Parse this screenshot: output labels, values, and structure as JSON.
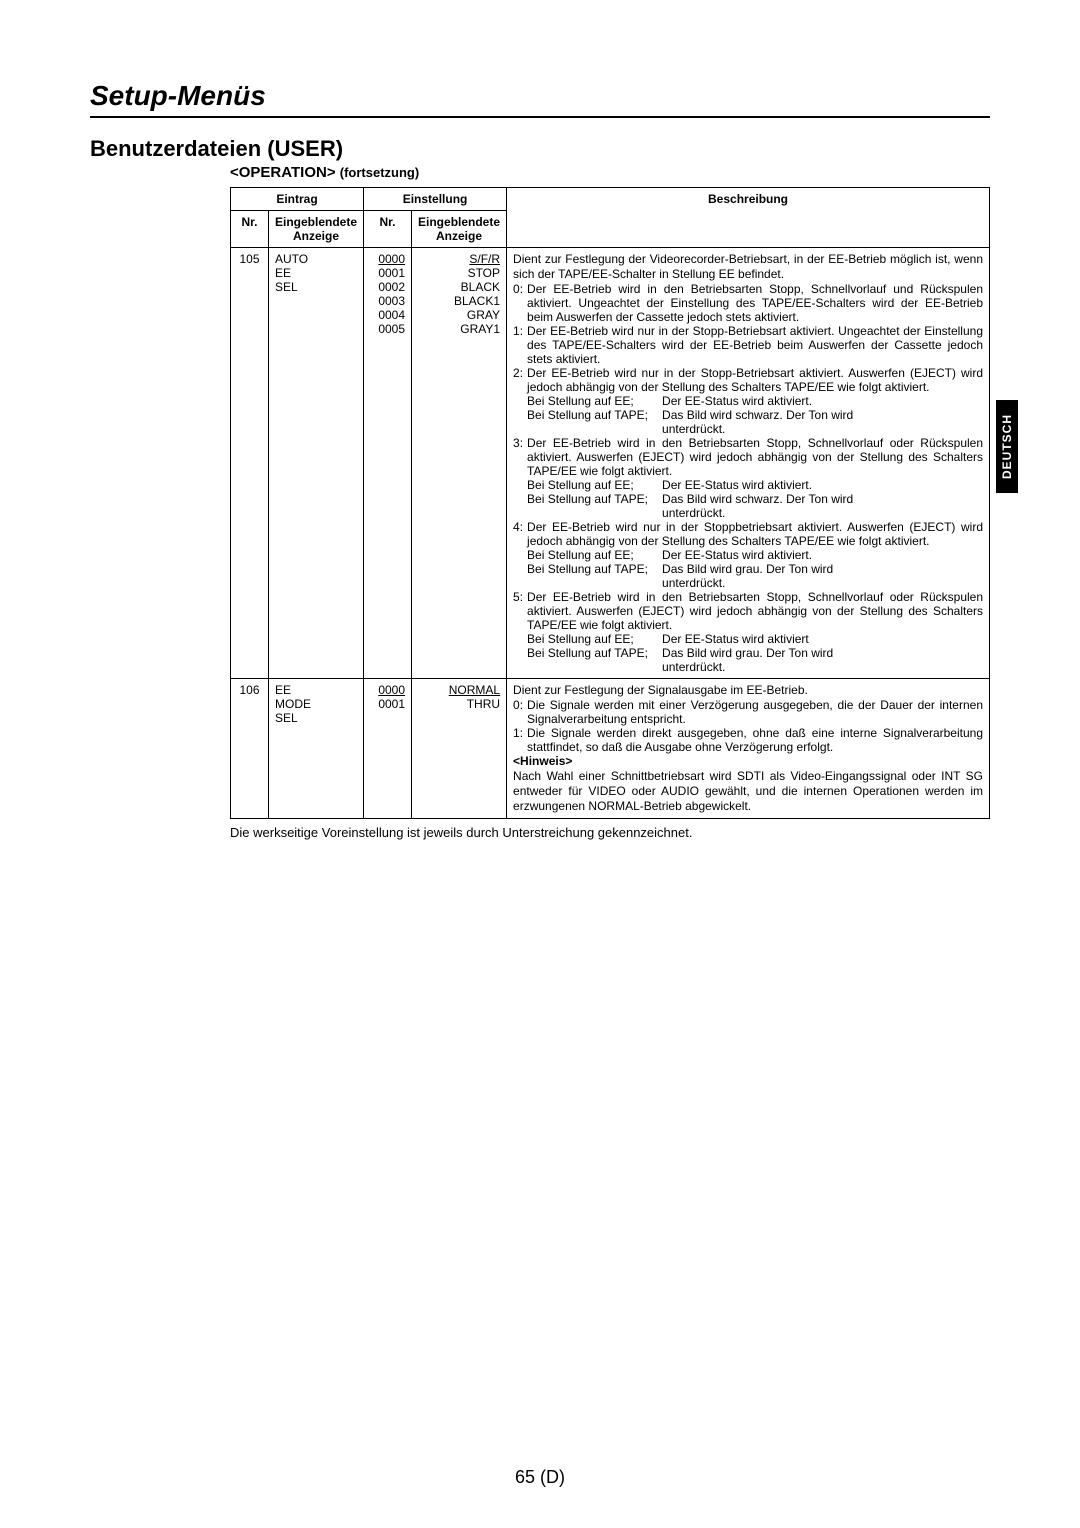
{
  "sideTab": "DEUTSCH",
  "titles": {
    "main": "Setup-Menüs",
    "sub": "Benutzerdateien (USER)",
    "operation": "<OPERATION>",
    "fort": "(fortsetzung)"
  },
  "headers": {
    "eintrag": "Eintrag",
    "einstellung": "Einstellung",
    "nr": "Nr.",
    "anzeige1": "Eingeblendete Anzeige",
    "snr": "Nr.",
    "anzeige2": "Eingeblendete Anzeige",
    "beschreibung": "Beschreibung"
  },
  "rows": [
    {
      "nr": "105",
      "item": "AUTO EE SEL",
      "settings_nr": [
        "0000",
        "0001",
        "0002",
        "0003",
        "0004",
        "0005"
      ],
      "settings_nr_underlined": 0,
      "settings_val": [
        "S/F/R",
        "STOP",
        "BLACK",
        "BLACK1",
        "GRAY",
        "GRAY1"
      ],
      "settings_val_underlined": 0,
      "desc": {
        "intro": "Dient zur Festlegung der Videorecorder-Betriebsart, in der EE-Betrieb möglich ist, wenn sich der TAPE/EE-Schalter in Stellung EE befindet.",
        "items": [
          {
            "n": "0:",
            "t": "Der EE-Betrieb wird in den Betriebsarten Stopp, Schnellvorlauf und Rückspulen aktiviert. Ungeachtet der Einstellung des TAPE/EE-Schalters wird der EE-Betrieb beim Auswerfen der Cassette jedoch stets aktiviert."
          },
          {
            "n": "1:",
            "t": "Der EE-Betrieb wird nur in der Stopp-Betriebsart aktiviert. Ungeachtet der Einstellung des TAPE/EE-Schalters wird der EE-Betrieb beim Auswerfen der Cassette jedoch stets aktiviert."
          },
          {
            "n": "2:",
            "t": "Der EE-Betrieb wird nur in der Stopp-Betriebsart aktiviert. Auswerfen (EJECT) wird jedoch abhängig von der Stellung des Schalters TAPE/EE wie folgt aktiviert.",
            "sub": [
              {
                "l": "Bei Stellung auf EE;",
                "r": "Der EE-Status wird aktiviert."
              },
              {
                "l": "Bei Stellung auf TAPE;",
                "r": "Das Bild wird schwarz. Der Ton wird unterdrückt."
              }
            ]
          },
          {
            "n": "3:",
            "t": "Der EE-Betrieb wird in den Betriebsarten Stopp, Schnellvorlauf oder Rückspulen aktiviert. Auswerfen (EJECT) wird jedoch abhängig von der Stellung des Schalters TAPE/EE wie folgt aktiviert.",
            "sub": [
              {
                "l": "Bei Stellung auf EE;",
                "r": "Der EE-Status wird aktiviert."
              },
              {
                "l": "Bei Stellung auf TAPE;",
                "r": "Das Bild wird schwarz. Der Ton wird unterdrückt."
              }
            ]
          },
          {
            "n": "4:",
            "t": "Der EE-Betrieb wird nur in der Stoppbetriebsart aktiviert. Auswerfen (EJECT) wird jedoch abhängig von der Stellung des Schalters TAPE/EE wie folgt aktiviert.",
            "sub": [
              {
                "l": "Bei Stellung auf EE;",
                "r": "Der EE-Status wird aktiviert."
              },
              {
                "l": "Bei Stellung auf TAPE;",
                "r": "Das Bild wird grau. Der Ton wird unterdrückt."
              }
            ]
          },
          {
            "n": "5:",
            "t": "Der EE-Betrieb wird in den Betriebsarten Stopp, Schnellvorlauf oder Rückspulen aktiviert. Auswerfen (EJECT) wird jedoch abhängig von der Stellung des Schalters TAPE/EE wie folgt aktiviert.",
            "sub": [
              {
                "l": "Bei Stellung auf EE;",
                "r": "Der EE-Status wird aktiviert"
              },
              {
                "l": "Bei Stellung auf TAPE;",
                "r": "Das Bild wird grau. Der Ton wird unterdrückt."
              }
            ]
          }
        ]
      }
    },
    {
      "nr": "106",
      "item": "EE MODE SEL",
      "settings_nr": [
        "0000",
        "0001"
      ],
      "settings_nr_underlined": 0,
      "settings_val": [
        "NORMAL",
        "THRU"
      ],
      "settings_val_underlined": 0,
      "desc": {
        "intro": "Dient zur Festlegung der Signalausgabe im EE-Betrieb.",
        "items": [
          {
            "n": "0:",
            "t": "Die Signale werden mit einer Verzögerung ausgegeben, die der Dauer der internen Signalverarbeitung entspricht."
          },
          {
            "n": "1:",
            "t": "Die Signale werden direkt ausgegeben, ohne daß eine interne Signalverarbeitung stattfindet, so daß die Ausgabe ohne Verzögerung erfolgt."
          }
        ],
        "hinweis_label": "<Hinweis>",
        "hinweis": "Nach Wahl einer Schnittbetriebsart wird SDTI als Video-Eingangssignal oder INT SG entweder für VIDEO oder AUDIO gewählt, und die internen Operationen werden im erzwungenen NORMAL-Betrieb abgewickelt."
      }
    }
  ],
  "footnote": "Die werkseitige Voreinstellung ist jeweils durch Unterstreichung gekennzeichnet.",
  "pagenum": "65 (D)"
}
